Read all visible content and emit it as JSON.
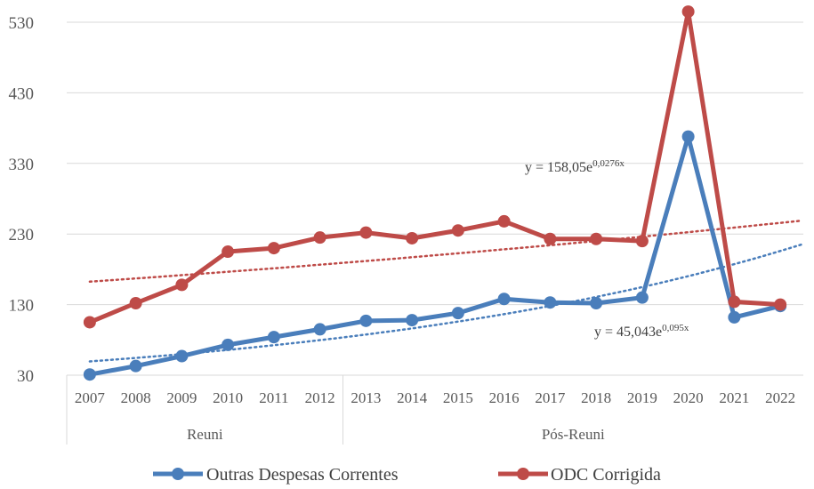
{
  "chart_data": {
    "type": "line",
    "x": [
      "2007",
      "2008",
      "2009",
      "2010",
      "2011",
      "2012",
      "2013",
      "2014",
      "2015",
      "2016",
      "2017",
      "2018",
      "2019",
      "2020",
      "2021",
      "2022"
    ],
    "groups": [
      {
        "label": "Reuni",
        "start": 0,
        "end": 5
      },
      {
        "label": "Pós-Reuni",
        "start": 6,
        "end": 15
      }
    ],
    "series": [
      {
        "name": "Outras Despesas Correntes",
        "color": "#4a7ebb",
        "values": [
          31,
          43,
          57,
          73,
          84,
          95,
          107,
          108,
          118,
          138,
          133,
          132,
          140,
          368,
          112,
          128
        ]
      },
      {
        "name": "ODC Corrigida",
        "color": "#be4b48",
        "values": [
          105,
          132,
          158,
          205,
          210,
          225,
          232,
          224,
          235,
          248,
          223,
          223,
          220,
          545,
          134,
          130
        ]
      }
    ],
    "trendlines": [
      {
        "series": 0,
        "type": "exponential",
        "a": 45.043,
        "b": 0.095,
        "label_main": "y = 45,043e",
        "label_exp": "0,095x"
      },
      {
        "series": 1,
        "type": "exponential",
        "a": 158.05,
        "b": 0.0276,
        "label_main": "y = 158,05e",
        "label_exp": "0,0276x"
      }
    ],
    "yticks": [
      30,
      130,
      230,
      330,
      430,
      530
    ],
    "ylim": [
      30,
      560
    ],
    "grid": true,
    "legend_position": "bottom"
  }
}
